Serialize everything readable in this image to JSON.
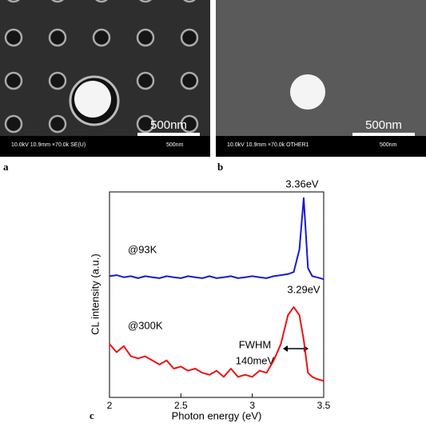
{
  "panels": [
    {
      "label": "a",
      "info": "10.0kV 10.9mm ×70.0k SE(U)",
      "info_scale": "500nm",
      "scale_bar": "500nm"
    },
    {
      "label": "b",
      "info": "10.0kV 10.9mm ×70.0k OTHER1",
      "info_scale": "500nm",
      "scale_bar": "500nm"
    }
  ],
  "chart_data": {
    "type": "line",
    "label": "c",
    "x_label": "Photon energy (eV)",
    "y_label": "CL intensity (a.u.)",
    "annotations": [
      "3.36eV",
      "3.29eV",
      "@93K",
      "@300K",
      "FWHM",
      "140meV"
    ],
    "x": [
      2.0,
      2.05,
      2.1,
      2.15,
      2.2,
      2.25,
      2.3,
      2.35,
      2.4,
      2.45,
      2.5,
      2.55,
      2.6,
      2.65,
      2.7,
      2.75,
      2.8,
      2.85,
      2.9,
      2.95,
      3.0,
      3.05,
      3.1,
      3.15,
      3.2,
      3.25,
      3.29,
      3.33,
      3.36,
      3.39,
      3.42,
      3.45,
      3.5
    ],
    "series": [
      {
        "name": "@93K",
        "color": "#1a1ad0",
        "values": [
          59,
          59.5,
          58.5,
          59,
          58,
          59,
          58.5,
          58,
          59,
          58.5,
          58,
          59,
          58.5,
          58,
          59,
          58,
          58.5,
          59,
          58,
          58.5,
          59,
          58.5,
          58,
          59,
          59.5,
          60,
          61,
          72,
          97,
          63,
          59,
          58.5,
          57.5
        ]
      },
      {
        "name": "@300K",
        "color": "#ee1111",
        "values": [
          26,
          22,
          25,
          20,
          19,
          20,
          18,
          16,
          18,
          14,
          15,
          13,
          14,
          12,
          11,
          13,
          10,
          14,
          10,
          11,
          10,
          13,
          12,
          18,
          26,
          40,
          44,
          40,
          28,
          12,
          10,
          9,
          8
        ]
      }
    ],
    "xlim": [
      2,
      3.5
    ],
    "xticks": [
      2,
      2.5,
      3,
      3.5
    ],
    "ylim": [
      0,
      100
    ]
  }
}
